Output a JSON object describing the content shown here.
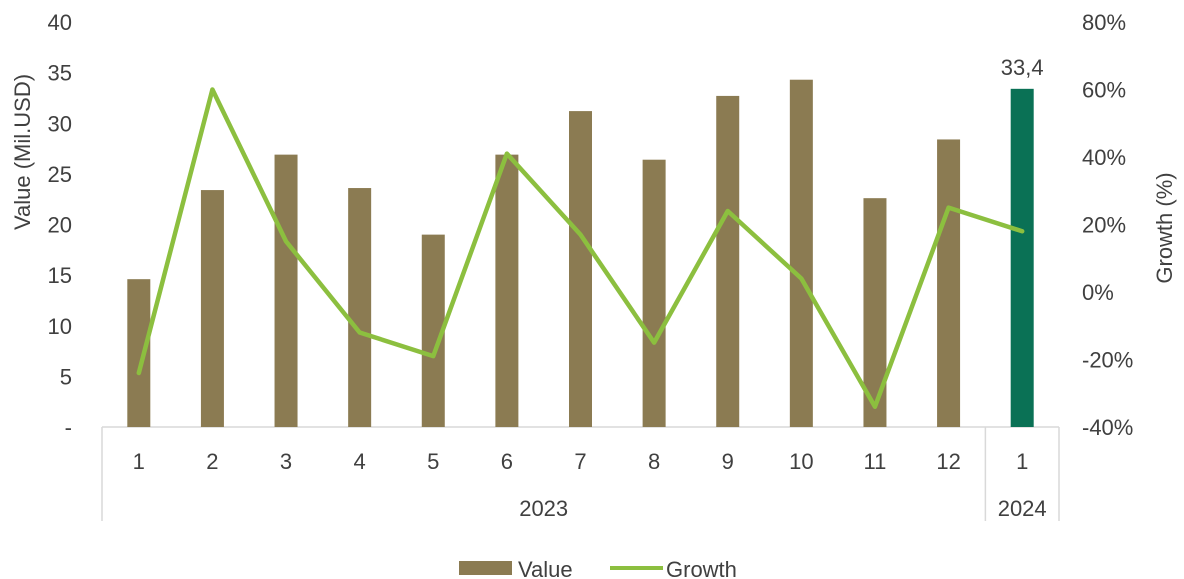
{
  "chart_data": {
    "type": "bar",
    "categories": [
      "1",
      "2",
      "3",
      "4",
      "5",
      "6",
      "7",
      "8",
      "9",
      "10",
      "11",
      "12",
      "1"
    ],
    "groups": [
      {
        "label": "2023",
        "count": 12
      },
      {
        "label": "2024",
        "count": 1
      }
    ],
    "series": [
      {
        "name": "Value",
        "type": "bar",
        "axis": "left",
        "color": "#8b7b52",
        "values": [
          14.6,
          23.4,
          26.9,
          23.6,
          19.0,
          26.9,
          31.2,
          26.4,
          32.7,
          34.3,
          22.6,
          28.4,
          33.4
        ],
        "highlight": {
          "index": 12,
          "color": "#0a7155"
        }
      },
      {
        "name": "Growth",
        "type": "line",
        "axis": "right",
        "color": "#8cbf3f",
        "values": [
          -24,
          60,
          15,
          -12,
          -19,
          41,
          17,
          -15,
          24,
          4,
          -34,
          25,
          18
        ]
      }
    ],
    "data_labels": [
      {
        "index": 12,
        "text": "33,4"
      }
    ],
    "ylabel": "Value (Mil.USD)",
    "y2label": "Growth (%)",
    "ylim": [
      0,
      40
    ],
    "y2lim": [
      -40,
      80
    ],
    "yticks": [
      "-",
      "5",
      "10",
      "15",
      "20",
      "25",
      "30",
      "35",
      "40"
    ],
    "y2ticks": [
      "-40%",
      "-20%",
      "0%",
      "20%",
      "40%",
      "60%",
      "80%"
    ],
    "grid": false,
    "legend": {
      "position": "bottom",
      "entries": [
        "Value",
        "Growth"
      ]
    }
  }
}
